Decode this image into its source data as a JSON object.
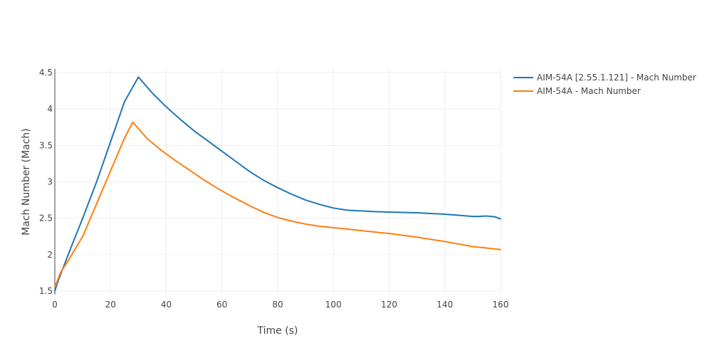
{
  "chart_data": {
    "type": "line",
    "xlabel": "Time (s)",
    "ylabel": "Mach Number (Mach)",
    "xlim": [
      0,
      160
    ],
    "ylim": [
      1.45,
      4.55
    ],
    "x_ticks": [
      0,
      20,
      40,
      60,
      80,
      100,
      120,
      140,
      160
    ],
    "y_ticks": [
      1.5,
      2,
      2.5,
      3,
      3.5,
      4,
      4.5
    ],
    "y_tick_labels": [
      "1.5",
      "2",
      "2.5",
      "3",
      "3.5",
      "4",
      "4.5"
    ],
    "grid": true,
    "legend_position": "top-right-outside",
    "series": [
      {
        "name": "AIM-54A [2.55.1.121] - Mach Number",
        "color": "#1f77b4",
        "x": [
          0,
          1,
          5,
          10,
          15,
          20,
          25,
          30,
          35,
          40,
          45,
          50,
          55,
          60,
          65,
          70,
          75,
          80,
          85,
          90,
          95,
          100,
          105,
          110,
          115,
          120,
          125,
          130,
          135,
          140,
          145,
          150,
          152,
          155,
          158,
          160
        ],
        "y": [
          1.5,
          1.62,
          2.02,
          2.5,
          3.0,
          3.55,
          4.1,
          4.44,
          4.22,
          4.03,
          3.86,
          3.7,
          3.56,
          3.42,
          3.28,
          3.14,
          3.02,
          2.92,
          2.83,
          2.75,
          2.69,
          2.64,
          2.61,
          2.6,
          2.59,
          2.585,
          2.58,
          2.575,
          2.565,
          2.555,
          2.54,
          2.525,
          2.525,
          2.53,
          2.52,
          2.49
        ]
      },
      {
        "name": "AIM-54A - Mach Number",
        "color": "#ff7f0e",
        "x": [
          0,
          2,
          5,
          10,
          15,
          20,
          25,
          28,
          33,
          38,
          43,
          48,
          53,
          58,
          63,
          70,
          75,
          80,
          85,
          90,
          95,
          100,
          110,
          120,
          130,
          140,
          150,
          155,
          160
        ],
        "y": [
          1.55,
          1.75,
          1.93,
          2.25,
          2.7,
          3.15,
          3.6,
          3.82,
          3.6,
          3.44,
          3.3,
          3.17,
          3.04,
          2.92,
          2.81,
          2.67,
          2.58,
          2.51,
          2.46,
          2.42,
          2.39,
          2.37,
          2.33,
          2.29,
          2.24,
          2.18,
          2.11,
          2.09,
          2.07
        ]
      }
    ]
  }
}
